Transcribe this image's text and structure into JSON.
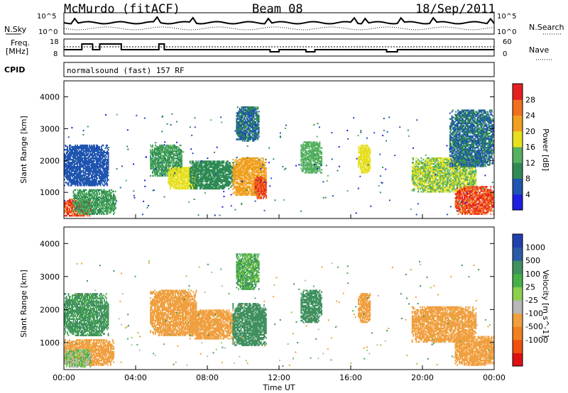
{
  "header": {
    "station": "McMurdo (fitACF)",
    "beam": "Beam 08",
    "date": "18/Sep/2011"
  },
  "summary_panels": {
    "nsky_label": "N.Sky",
    "nsky_ticks": [
      "10^5",
      "10^0"
    ],
    "nsearch_label": "N.Search",
    "nsearch_ticks": [
      "10^5",
      "10^0"
    ],
    "freq_label_1": "Freq.",
    "freq_label_2": "[MHz]",
    "freq_ticks": [
      "18",
      "8"
    ],
    "nave_label": "Nave",
    "nave_ticks": [
      "60",
      "0"
    ],
    "cpid_label": "CPID",
    "cpid_text": "normalsound (fast) 157 RF"
  },
  "colors": {
    "power_scale": [
      "#1e1ee0",
      "#1f55b0",
      "#2f8a55",
      "#55b060",
      "#e6e020",
      "#f0a020",
      "#f07020",
      "#e62020"
    ],
    "velocity_scale": [
      "#e01010",
      "#f05010",
      "#f08020",
      "#f0a040",
      "#b8b8b8",
      "#8cd050",
      "#48b048",
      "#409060",
      "#2c5ca8",
      "#2040b0"
    ]
  },
  "chart_data": [
    {
      "type": "heatmap",
      "name": "power",
      "xlabel": "",
      "ylabel": "Slant Range [km]",
      "ylim": [
        180,
        4500
      ],
      "yticks": [
        1000,
        2000,
        3000,
        4000
      ],
      "x_ticks": [
        "00:00",
        "04:00",
        "08:00",
        "12:00",
        "16:00",
        "20:00",
        "00:00"
      ],
      "x_hours": [
        0,
        4,
        8,
        12,
        16,
        20,
        24
      ],
      "colorbar": {
        "label": "Power [dB]",
        "ticks": [
          4,
          8,
          12,
          16,
          20,
          24,
          28
        ],
        "range": [
          0,
          32
        ]
      },
      "regions": [
        {
          "t": [
            0.0,
            1.5
          ],
          "r": [
            250,
            800
          ],
          "v": 28
        },
        {
          "t": [
            0.5,
            2.9
          ],
          "r": [
            300,
            1100
          ],
          "v": 12
        },
        {
          "t": [
            0.0,
            2.5
          ],
          "r": [
            1200,
            2500
          ],
          "v": 6
        },
        {
          "t": [
            4.8,
            6.6
          ],
          "r": [
            1500,
            2500
          ],
          "v": 12
        },
        {
          "t": [
            5.8,
            7.5
          ],
          "r": [
            1100,
            1800
          ],
          "v": 18
        },
        {
          "t": [
            7.0,
            9.5
          ],
          "r": [
            1100,
            2000
          ],
          "v": 10
        },
        {
          "t": [
            9.4,
            11.3
          ],
          "r": [
            900,
            2100
          ],
          "v": 22
        },
        {
          "t": [
            10.6,
            11.3
          ],
          "r": [
            800,
            1500
          ],
          "v": 28
        },
        {
          "t": [
            9.6,
            10.9
          ],
          "r": [
            2600,
            3700
          ],
          "v": 8
        },
        {
          "t": [
            13.2,
            14.4
          ],
          "r": [
            1600,
            2600
          ],
          "v": 14
        },
        {
          "t": [
            16.4,
            17.1
          ],
          "r": [
            1600,
            2500
          ],
          "v": 18
        },
        {
          "t": [
            19.4,
            23.0
          ],
          "r": [
            1000,
            2100
          ],
          "v": 16
        },
        {
          "t": [
            21.8,
            24.0
          ],
          "r": [
            300,
            1200
          ],
          "v": 28
        },
        {
          "t": [
            21.5,
            24.0
          ],
          "r": [
            1800,
            3600
          ],
          "v": 8
        }
      ]
    },
    {
      "type": "heatmap",
      "name": "velocity",
      "xlabel": "Time UT",
      "ylabel": "Slant Range [km]",
      "ylim": [
        180,
        4500
      ],
      "yticks": [
        1000,
        2000,
        3000,
        4000
      ],
      "x_ticks": [
        "00:00",
        "04:00",
        "08:00",
        "12:00",
        "16:00",
        "20:00",
        "00:00"
      ],
      "x_hours": [
        0,
        4,
        8,
        12,
        16,
        20,
        24
      ],
      "colorbar": {
        "label": "Velocity [m s^-1]",
        "ticks": [
          "1000",
          "500",
          "100",
          "25",
          "-25",
          "-100",
          "-500",
          "-1000"
        ]
      },
      "regions": [
        {
          "t": [
            0.0,
            2.8
          ],
          "r": [
            300,
            1100
          ],
          "v": -300
        },
        {
          "t": [
            0.0,
            1.5
          ],
          "r": [
            250,
            800
          ],
          "v": 0
        },
        {
          "t": [
            0.0,
            2.5
          ],
          "r": [
            1200,
            2500
          ],
          "v": 150
        },
        {
          "t": [
            4.8,
            7.4
          ],
          "r": [
            1200,
            2600
          ],
          "v": -200
        },
        {
          "t": [
            7.0,
            9.5
          ],
          "r": [
            1100,
            2000
          ],
          "v": -200
        },
        {
          "t": [
            9.4,
            11.3
          ],
          "r": [
            900,
            2200
          ],
          "v": 200
        },
        {
          "t": [
            9.6,
            10.9
          ],
          "r": [
            2600,
            3700
          ],
          "v": 80
        },
        {
          "t": [
            13.2,
            14.4
          ],
          "r": [
            1600,
            2600
          ],
          "v": 200
        },
        {
          "t": [
            16.4,
            17.1
          ],
          "r": [
            1600,
            2500
          ],
          "v": -200
        },
        {
          "t": [
            19.4,
            23.0
          ],
          "r": [
            1000,
            2100
          ],
          "v": -200
        },
        {
          "t": [
            21.8,
            24.0
          ],
          "r": [
            300,
            1200
          ],
          "v": -300
        }
      ]
    }
  ]
}
